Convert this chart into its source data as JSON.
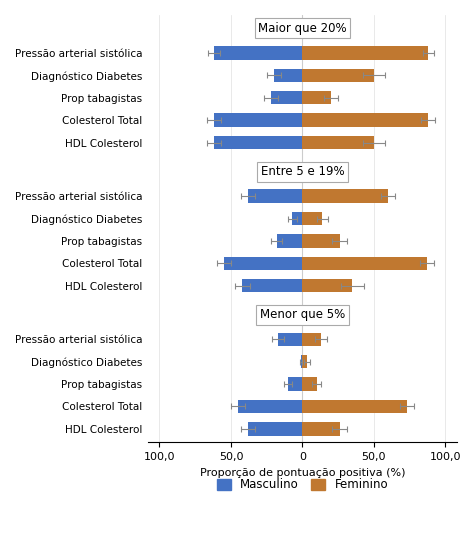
{
  "sections": [
    {
      "label": "Maior que 20%",
      "rows": [
        {
          "name": "Pressão arterial sistólica",
          "masc": -62,
          "fem": 88,
          "masc_err": 4,
          "fem_err": 4
        },
        {
          "name": "Diagnóstico Diabetes",
          "masc": -20,
          "fem": 50,
          "masc_err": 5,
          "fem_err": 8
        },
        {
          "name": "Prop tabagistas",
          "masc": -22,
          "fem": 20,
          "masc_err": 5,
          "fem_err": 5
        },
        {
          "name": "Colesterol Total",
          "masc": -62,
          "fem": 88,
          "masc_err": 5,
          "fem_err": 5
        },
        {
          "name": "HDL Colesterol",
          "masc": -62,
          "fem": 50,
          "masc_err": 5,
          "fem_err": 8
        }
      ]
    },
    {
      "label": "Entre 5 e 19%",
      "rows": [
        {
          "name": "Pressão arterial sistólica",
          "masc": -38,
          "fem": 60,
          "masc_err": 5,
          "fem_err": 5
        },
        {
          "name": "Diagnóstico Diabetes",
          "masc": -7,
          "fem": 14,
          "masc_err": 3,
          "fem_err": 4
        },
        {
          "name": "Prop tabagistas",
          "masc": -18,
          "fem": 26,
          "masc_err": 4,
          "fem_err": 5
        },
        {
          "name": "Colesterol Total",
          "masc": -55,
          "fem": 87,
          "masc_err": 5,
          "fem_err": 5
        },
        {
          "name": "HDL Colesterol",
          "masc": -42,
          "fem": 35,
          "masc_err": 5,
          "fem_err": 8
        }
      ]
    },
    {
      "label": "Menor que 5%",
      "rows": [
        {
          "name": "Pressão arterial sistólica",
          "masc": -17,
          "fem": 13,
          "masc_err": 4,
          "fem_err": 4
        },
        {
          "name": "Diagnóstico Diabetes",
          "masc": -1,
          "fem": 3,
          "masc_err": 1,
          "fem_err": 2
        },
        {
          "name": "Prop tabagistas",
          "masc": -10,
          "fem": 10,
          "masc_err": 3,
          "fem_err": 3
        },
        {
          "name": "Colesterol Total",
          "masc": -45,
          "fem": 73,
          "masc_err": 5,
          "fem_err": 5
        },
        {
          "name": "HDL Colesterol",
          "masc": -38,
          "fem": 26,
          "masc_err": 5,
          "fem_err": 5
        }
      ]
    }
  ],
  "masc_color": "#4472C4",
  "fem_color": "#C07830",
  "xlabel": "Proporção de pontuação positiva (%)",
  "legend_masc": "Masculino",
  "legend_fem": "Feminino",
  "xlim": [
    -108,
    108
  ],
  "xticks": [
    -100,
    -50,
    0,
    50,
    100
  ],
  "xticklabels": [
    "100,0",
    "50,0",
    "0",
    "50,0",
    "100,0"
  ],
  "background_color": "#ffffff",
  "bar_height": 0.6
}
